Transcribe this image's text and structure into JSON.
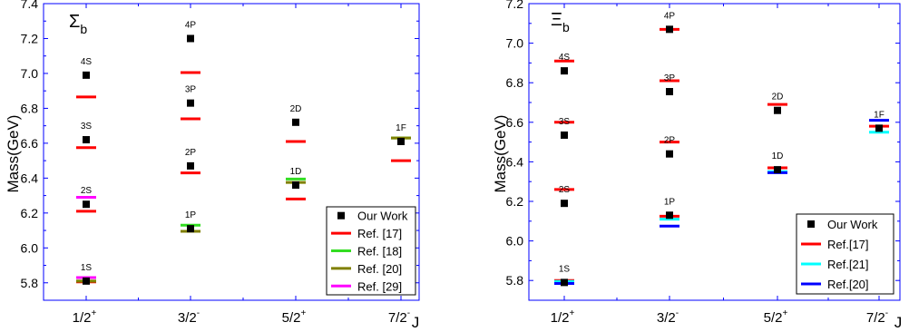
{
  "chart_data": [
    {
      "type": "scatter",
      "title": "Σ_b",
      "title_main": "Σ",
      "title_sub": "b",
      "xlabel": "J",
      "ylabel": "Mass(GeV)",
      "categories": [
        "1/2+",
        "3/2-",
        "5/2+",
        "7/2-"
      ],
      "category_labels": [
        {
          "base": "1/2",
          "sup": "+"
        },
        {
          "base": "3/2",
          "sup": "-"
        },
        {
          "base": "5/2",
          "sup": "+"
        },
        {
          "base": "7/2",
          "sup": "-"
        }
      ],
      "ylim": [
        5.7,
        7.4
      ],
      "yticks": [
        "5.8",
        "6.0",
        "6.2",
        "6.4",
        "6.6",
        "6.8",
        "7.0",
        "7.2",
        "7.4"
      ],
      "legend_position": "bottom-right",
      "series": [
        {
          "name": "Our Work",
          "marker": "square",
          "color": "#000000",
          "points": [
            {
              "category": "1/2+",
              "value": 5.81,
              "label": "1S"
            },
            {
              "category": "1/2+",
              "value": 6.25,
              "label": "2S"
            },
            {
              "category": "1/2+",
              "value": 6.62,
              "label": "3S"
            },
            {
              "category": "1/2+",
              "value": 6.99,
              "label": "4S"
            },
            {
              "category": "3/2-",
              "value": 6.11,
              "label": "1P"
            },
            {
              "category": "3/2-",
              "value": 6.47,
              "label": "2P"
            },
            {
              "category": "3/2-",
              "value": 6.83,
              "label": "3P"
            },
            {
              "category": "3/2-",
              "value": 7.2,
              "label": "4P"
            },
            {
              "category": "5/2+",
              "value": 6.36,
              "label": "1D"
            },
            {
              "category": "5/2+",
              "value": 6.72,
              "label": "2D"
            },
            {
              "category": "7/2-",
              "value": 6.61,
              "label": "1F"
            }
          ]
        },
        {
          "name": "Ref. [17]",
          "marker": "dash",
          "color": "#ff0000",
          "points": [
            {
              "category": "1/2+",
              "value": 5.805
            },
            {
              "category": "1/2+",
              "value": 6.21
            },
            {
              "category": "1/2+",
              "value": 6.575
            },
            {
              "category": "1/2+",
              "value": 6.865
            },
            {
              "category": "3/2-",
              "value": 6.095
            },
            {
              "category": "3/2-",
              "value": 6.43
            },
            {
              "category": "3/2-",
              "value": 6.74
            },
            {
              "category": "3/2-",
              "value": 7.005
            },
            {
              "category": "5/2+",
              "value": 6.28
            },
            {
              "category": "5/2+",
              "value": 6.61
            },
            {
              "category": "7/2-",
              "value": 6.5
            }
          ]
        },
        {
          "name": "Ref. [18]",
          "marker": "dash",
          "color": "#33dd22",
          "points": [
            {
              "category": "1/2+",
              "value": 5.81
            },
            {
              "category": "3/2-",
              "value": 6.13
            },
            {
              "category": "5/2+",
              "value": 6.395
            },
            {
              "category": "7/2-",
              "value": 6.63
            }
          ]
        },
        {
          "name": "Ref. [20]",
          "marker": "dash",
          "color": "#808000",
          "points": [
            {
              "category": "1/2+",
              "value": 5.81
            },
            {
              "category": "3/2-",
              "value": 6.095
            },
            {
              "category": "5/2+",
              "value": 6.375
            },
            {
              "category": "7/2-",
              "value": 6.63
            }
          ]
        },
        {
          "name": "Ref. [29]",
          "marker": "dash",
          "color": "#ff00ff",
          "points": [
            {
              "category": "1/2+",
              "value": 5.83
            },
            {
              "category": "1/2+",
              "value": 6.29
            }
          ]
        }
      ]
    },
    {
      "type": "scatter",
      "title": "Ξ_b",
      "title_main": "Ξ",
      "title_sub": "b",
      "xlabel": "J",
      "ylabel": "Mass(GeV)",
      "categories": [
        "1/2+",
        "3/2-",
        "5/2+",
        "7/2-"
      ],
      "category_labels": [
        {
          "base": "1/2",
          "sup": "+"
        },
        {
          "base": "3/2",
          "sup": "-"
        },
        {
          "base": "5/2",
          "sup": "+"
        },
        {
          "base": "7/2",
          "sup": "-"
        }
      ],
      "ylim": [
        5.7,
        7.2
      ],
      "yticks": [
        "5.8",
        "6.0",
        "6.2",
        "6.4",
        "6.6",
        "6.8",
        "7.0",
        "7.2"
      ],
      "legend_position": "bottom-right",
      "series": [
        {
          "name": "Our Work",
          "marker": "square",
          "color": "#000000",
          "points": [
            {
              "category": "1/2+",
              "value": 5.79,
              "label": "1S"
            },
            {
              "category": "1/2+",
              "value": 6.19,
              "label": "2S"
            },
            {
              "category": "1/2+",
              "value": 6.535,
              "label": "3S"
            },
            {
              "category": "1/2+",
              "value": 6.86,
              "label": "4S"
            },
            {
              "category": "3/2-",
              "value": 6.13,
              "label": "1P"
            },
            {
              "category": "3/2-",
              "value": 6.44,
              "label": "2P"
            },
            {
              "category": "3/2-",
              "value": 6.755,
              "label": "3P"
            },
            {
              "category": "3/2-",
              "value": 7.07,
              "label": "4P"
            },
            {
              "category": "5/2+",
              "value": 6.36,
              "label": "1D"
            },
            {
              "category": "5/2+",
              "value": 6.66,
              "label": "2D"
            },
            {
              "category": "7/2-",
              "value": 6.57,
              "label": "1F"
            }
          ]
        },
        {
          "name": "Ref.[17]",
          "marker": "dash",
          "color": "#ff0000",
          "points": [
            {
              "category": "1/2+",
              "value": 5.8
            },
            {
              "category": "1/2+",
              "value": 6.26
            },
            {
              "category": "1/2+",
              "value": 6.6
            },
            {
              "category": "1/2+",
              "value": 6.91
            },
            {
              "category": "3/2-",
              "value": 6.125
            },
            {
              "category": "3/2-",
              "value": 6.5
            },
            {
              "category": "3/2-",
              "value": 6.81
            },
            {
              "category": "3/2-",
              "value": 7.07
            },
            {
              "category": "5/2+",
              "value": 6.37
            },
            {
              "category": "5/2+",
              "value": 6.69
            },
            {
              "category": "7/2-",
              "value": 6.58
            }
          ]
        },
        {
          "name": "Ref.[21]",
          "marker": "dash",
          "color": "#00ffff",
          "points": [
            {
              "category": "1/2+",
              "value": 5.795
            },
            {
              "category": "3/2-",
              "value": 6.11
            },
            {
              "category": "5/2+",
              "value": 6.35
            },
            {
              "category": "7/2-",
              "value": 6.55
            }
          ]
        },
        {
          "name": "Ref.[20]",
          "marker": "dash",
          "color": "#0000ff",
          "points": [
            {
              "category": "1/2+",
              "value": 5.785
            },
            {
              "category": "3/2-",
              "value": 6.075
            },
            {
              "category": "5/2+",
              "value": 6.345
            },
            {
              "category": "7/2-",
              "value": 6.61
            }
          ]
        }
      ]
    }
  ]
}
